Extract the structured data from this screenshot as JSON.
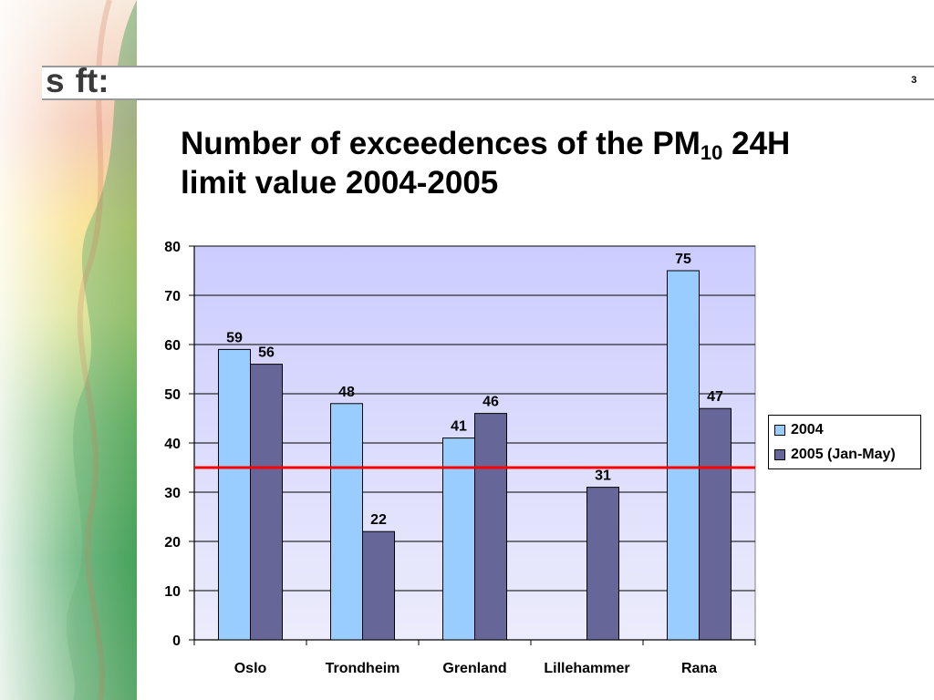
{
  "header": {
    "logo_left": "s",
    "logo_right": "ft:",
    "page_number": "3"
  },
  "slide": {
    "title_line1_prefix": "Number of exceedences of the PM",
    "title_subscript": "10",
    "title_line1_suffix": " 24H",
    "title_line2": "limit value 2004-2005"
  },
  "colors": {
    "series_2004": "#99ccff",
    "series_2005": "#666699",
    "plot_bg_top": "#ccccff",
    "plot_bg_bottom": "#ececfc",
    "limit_line": "#ff0000"
  },
  "chart_data": {
    "type": "bar",
    "title": "",
    "xlabel": "",
    "ylabel": "",
    "ylim": [
      0,
      80
    ],
    "yticks": [
      0,
      10,
      20,
      30,
      40,
      50,
      60,
      70,
      80
    ],
    "grid": true,
    "legend_position": "right",
    "categories": [
      "Oslo",
      "Trondheim",
      "Grenland",
      "Lillehammer",
      "Rana"
    ],
    "series": [
      {
        "name": "2004",
        "values": [
          59,
          48,
          41,
          null,
          75
        ],
        "labels": [
          "59",
          "48",
          "41",
          "",
          "75"
        ]
      },
      {
        "name": "2005 (Jan-May)",
        "values": [
          56,
          22,
          46,
          31,
          47
        ],
        "labels": [
          "56",
          "22",
          "46",
          "31",
          "47"
        ]
      }
    ],
    "reference_line": {
      "value": 35
    }
  }
}
